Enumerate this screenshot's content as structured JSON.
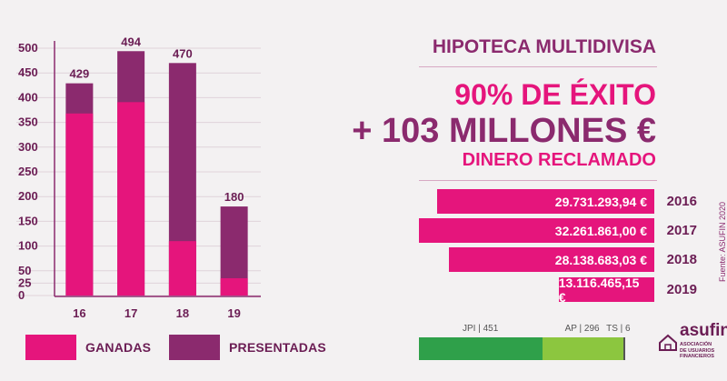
{
  "chart_data": {
    "type": "bar",
    "categories": [
      "16",
      "17",
      "18",
      "19"
    ],
    "series": [
      {
        "name": "PRESENTADAS",
        "values": [
          429,
          494,
          470,
          180
        ]
      },
      {
        "name": "GANADAS",
        "values": [
          368,
          391,
          110,
          35
        ]
      }
    ],
    "data_labels": [
      "429",
      "494",
      "470",
      "180"
    ],
    "yticks": [
      0,
      25,
      50,
      100,
      150,
      200,
      250,
      300,
      350,
      400,
      450,
      500
    ],
    "ylim": [
      0,
      500
    ],
    "grid": true,
    "title": "",
    "xlabel": "",
    "ylabel": ""
  },
  "colors": {
    "ganadas": "#e5157c",
    "presentadas": "#8b2a6e",
    "text": "#6b1d54"
  },
  "legend": [
    {
      "label": "GANADAS",
      "color": "#e5157c"
    },
    {
      "label": "PRESENTADAS",
      "color": "#8b2a6e"
    }
  ],
  "headline": {
    "title": "HIPOTECA MULTIDIVISA",
    "success": "90% DE ÉXITO",
    "millions": "+ 103 MILLONES €",
    "subtitle": "DINERO RECLAMADO"
  },
  "amounts": [
    {
      "value": "29.731.293,94 €",
      "year": "2016",
      "raw": 29731293.94
    },
    {
      "value": "32.261.861,00 €",
      "year": "2017",
      "raw": 32261861.0
    },
    {
      "value": "28.138.683,03 €",
      "year": "2018",
      "raw": 28138683.03
    },
    {
      "value": "13.116.465,15 €",
      "year": "2019",
      "raw": 13116465.15
    }
  ],
  "source": "Fuente: ASUFIN 2020",
  "courts": [
    {
      "label": "JPI | 451",
      "count": 451,
      "color": "#2fa04a"
    },
    {
      "label": "AP | 296",
      "count": 296,
      "color": "#8cc63f"
    },
    {
      "label": "TS | 6",
      "count": 6,
      "color": "#555555"
    }
  ],
  "logo": {
    "name": "asufin",
    "line1": "ASOCIACIÓN",
    "line2": "DE USUARIOS",
    "line3": "FINANCIEROS"
  }
}
